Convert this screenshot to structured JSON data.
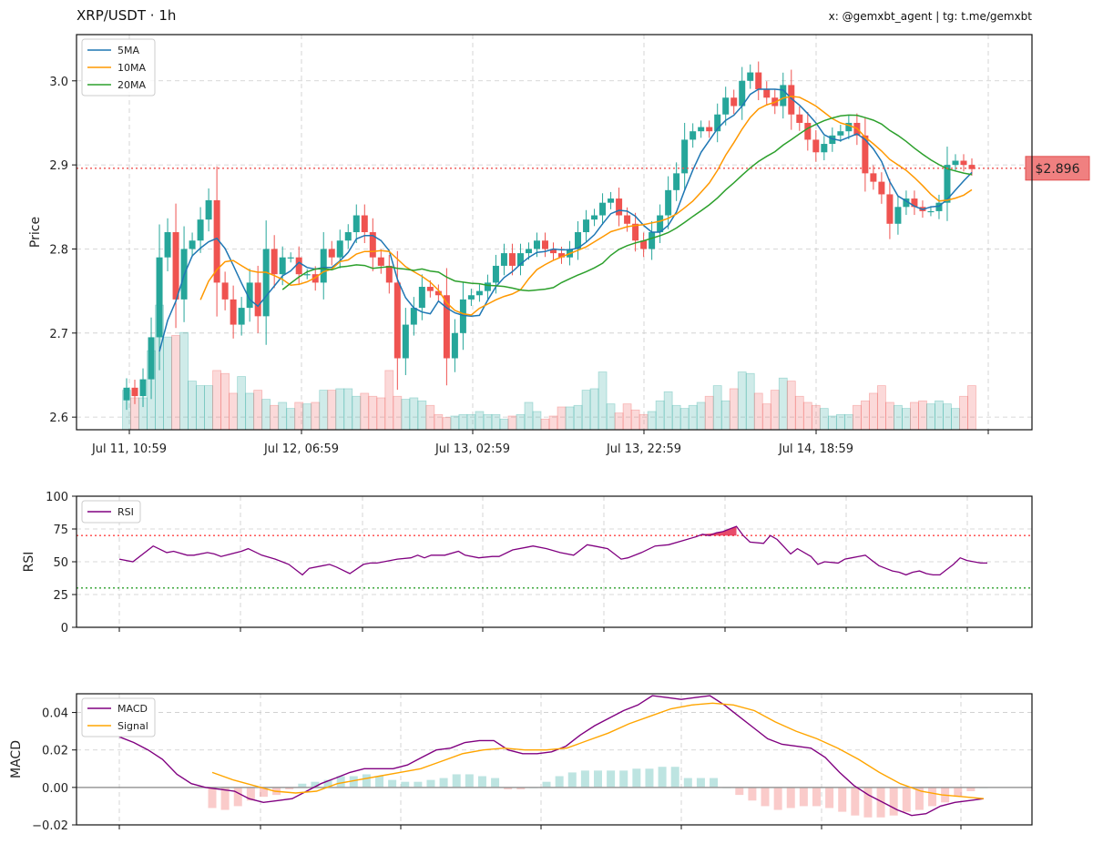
{
  "header": {
    "title": "XRP/USDT · 1h",
    "credit": "x: @gemxbt_agent | tg: t.me/gemxbt"
  },
  "colors": {
    "up": "#26a69a",
    "down": "#ef5350",
    "ma5": "#1f77b4",
    "ma10": "#ff9800",
    "ma20": "#2ca02c",
    "rsi": "#800080",
    "macd": "#800080",
    "signal": "#ffa500",
    "price_line": "#ef5350",
    "overbought": "#ff4444",
    "oversold": "#2ca02c"
  },
  "chart_data": [
    {
      "type": "candlestick",
      "ylabel": "Price",
      "ylim": [
        2.585,
        3.055
      ],
      "yticks": [
        "2.6",
        "2.7",
        "2.8",
        "2.9",
        "3.0"
      ],
      "xticks": [
        "Jul 11, 10:59",
        "Jul 12, 06:59",
        "Jul 13, 02:59",
        "Jul 13, 22:59",
        "Jul 14, 18:59"
      ],
      "grid": true,
      "legend": {
        "position": "top-left",
        "items": [
          "5MA",
          "10MA",
          "20MA"
        ]
      },
      "current_price": 2.896,
      "current_price_label": "$2.896",
      "closes": [
        2.635,
        2.625,
        2.645,
        2.695,
        2.79,
        2.82,
        2.74,
        2.8,
        2.81,
        2.835,
        2.858,
        2.76,
        2.74,
        2.71,
        2.73,
        2.76,
        2.72,
        2.8,
        2.77,
        2.79,
        2.79,
        2.77,
        2.77,
        2.76,
        2.8,
        2.79,
        2.81,
        2.82,
        2.84,
        2.82,
        2.79,
        2.78,
        2.76,
        2.67,
        2.71,
        2.73,
        2.755,
        2.75,
        2.745,
        2.67,
        2.7,
        2.74,
        2.745,
        2.75,
        2.76,
        2.78,
        2.795,
        2.78,
        2.795,
        2.8,
        2.81,
        2.8,
        2.795,
        2.79,
        2.8,
        2.82,
        2.835,
        2.84,
        2.855,
        2.86,
        2.84,
        2.83,
        2.81,
        2.8,
        2.82,
        2.84,
        2.87,
        2.89,
        2.93,
        2.94,
        2.945,
        2.94,
        2.96,
        2.98,
        2.97,
        3.0,
        3.01,
        2.99,
        2.98,
        2.97,
        2.995,
        2.96,
        2.95,
        2.93,
        2.915,
        2.925,
        2.935,
        2.94,
        2.95,
        2.935,
        2.89,
        2.88,
        2.865,
        2.83,
        2.85,
        2.86,
        2.85,
        2.845,
        2.845,
        2.855,
        2.9,
        2.905,
        2.9,
        2.895
      ],
      "volumes": [
        0.026,
        0.021,
        0.021,
        0.052,
        0.082,
        0.061,
        0.062,
        0.064,
        0.032,
        0.029,
        0.029,
        0.039,
        0.037,
        0.024,
        0.035,
        0.024,
        0.026,
        0.02,
        0.016,
        0.018,
        0.014,
        0.018,
        0.017,
        0.018,
        0.026,
        0.026,
        0.027,
        0.027,
        0.022,
        0.024,
        0.022,
        0.021,
        0.039,
        0.022,
        0.02,
        0.021,
        0.019,
        0.016,
        0.01,
        0.008,
        0.009,
        0.01,
        0.01,
        0.012,
        0.01,
        0.01,
        0.007,
        0.009,
        0.01,
        0.018,
        0.012,
        0.007,
        0.009,
        0.015,
        0.015,
        0.016,
        0.026,
        0.027,
        0.038,
        0.017,
        0.011,
        0.017,
        0.013,
        0.01,
        0.012,
        0.019,
        0.025,
        0.016,
        0.014,
        0.016,
        0.018,
        0.022,
        0.029,
        0.019,
        0.027,
        0.038,
        0.037,
        0.024,
        0.017,
        0.026,
        0.034,
        0.032,
        0.022,
        0.018,
        0.016,
        0.014,
        0.009,
        0.01,
        0.01,
        0.016,
        0.019,
        0.024,
        0.029,
        0.018,
        0.016,
        0.014,
        0.018,
        0.019,
        0.017,
        0.019,
        0.017,
        0.014,
        0.022,
        0.029
      ],
      "volume_scale_max": 0.26
    },
    {
      "type": "line",
      "ylabel": "RSI",
      "ylim": [
        0,
        100
      ],
      "yticks": [
        "0",
        "25",
        "50",
        "75",
        "100"
      ],
      "legend": {
        "position": "top-left",
        "items": [
          "RSI"
        ]
      },
      "overbought": 70,
      "oversold": 30,
      "values": [
        52,
        50,
        62,
        57,
        58,
        55,
        55,
        57,
        56,
        54,
        58,
        60,
        55,
        52,
        50,
        48,
        40,
        45,
        47,
        48,
        46,
        41,
        48,
        49,
        49,
        50,
        52,
        53,
        55,
        53,
        55,
        55,
        58,
        55,
        53,
        54,
        54,
        59,
        61,
        62,
        60,
        57,
        55,
        63,
        62,
        60,
        52,
        53,
        57,
        62,
        63,
        66,
        69,
        71,
        70,
        72,
        73,
        75,
        77,
        70,
        65,
        64,
        70,
        67,
        56,
        60,
        54,
        48,
        50,
        49,
        52,
        53,
        54,
        55,
        51,
        47,
        45,
        43,
        42,
        40,
        42,
        43,
        41,
        40,
        40,
        44,
        48,
        53,
        51,
        50,
        49,
        49
      ],
      "x_rsi": [
        0,
        2,
        5,
        7,
        8,
        10,
        11,
        13,
        14,
        15,
        18,
        19,
        21,
        23,
        24,
        25,
        27,
        28,
        30,
        31,
        32,
        34,
        36,
        37,
        38,
        39,
        41,
        43,
        44,
        45,
        46,
        48,
        50,
        51,
        53,
        55,
        56,
        58,
        60,
        61,
        63,
        65,
        67,
        69,
        70,
        72,
        74,
        75,
        77,
        79,
        81,
        83,
        85,
        86,
        87,
        88,
        89,
        90,
        91,
        92,
        93,
        95,
        96,
        97,
        99,
        100,
        102,
        103,
        104,
        106,
        107,
        108,
        109,
        110,
        111,
        112,
        113,
        114,
        115,
        116,
        117,
        118,
        119,
        120,
        121,
        122,
        123,
        124,
        125,
        126,
        127,
        128
      ]
    },
    {
      "type": "line",
      "ylabel": "MACD",
      "ylim": [
        -0.02,
        0.05
      ],
      "yticks": [
        "−0.02",
        "0.00",
        "0.02",
        "0.04"
      ],
      "legend": {
        "position": "top-left",
        "items": [
          "MACD",
          "Signal"
        ]
      },
      "macd": [
        0.027,
        0.024,
        0.02,
        0.015,
        0.007,
        0.002,
        0.0,
        -0.001,
        -0.002,
        -0.006,
        -0.008,
        -0.007,
        -0.006,
        -0.002,
        0.002,
        0.005,
        0.008,
        0.01,
        0.01,
        0.01,
        0.012,
        0.016,
        0.02,
        0.021,
        0.024,
        0.025,
        0.025,
        0.02,
        0.018,
        0.018,
        0.019,
        0.022,
        0.028,
        0.033,
        0.037,
        0.041,
        0.044,
        0.049,
        0.048,
        0.047,
        0.048,
        0.049,
        0.044,
        0.038,
        0.032,
        0.026,
        0.023,
        0.022,
        0.021,
        0.016,
        0.008,
        0.001,
        -0.004,
        -0.008,
        -0.012,
        -0.015,
        -0.014,
        -0.01,
        -0.008,
        -0.007,
        -0.006
      ],
      "signal": [
        0.008,
        0.004,
        0.001,
        -0.002,
        -0.003,
        -0.002,
        0.002,
        0.004,
        0.006,
        0.008,
        0.01,
        0.014,
        0.018,
        0.02,
        0.021,
        0.02,
        0.02,
        0.021,
        0.025,
        0.029,
        0.034,
        0.038,
        0.042,
        0.044,
        0.045,
        0.044,
        0.041,
        0.035,
        0.03,
        0.026,
        0.021,
        0.015,
        0.008,
        0.002,
        -0.002,
        -0.004,
        -0.005,
        -0.006
      ],
      "histogram": [
        -0.011,
        -0.012,
        -0.01,
        -0.007,
        -0.005,
        -0.004,
        -0.001,
        0.002,
        0.003,
        0.004,
        0.006,
        0.006,
        0.007,
        0.006,
        0.004,
        0.003,
        0.003,
        0.004,
        0.005,
        0.007,
        0.007,
        0.006,
        0.005,
        -0.001,
        -0.001,
        0.0,
        0.003,
        0.006,
        0.008,
        0.009,
        0.009,
        0.009,
        0.009,
        0.01,
        0.01,
        0.011,
        0.011,
        0.005,
        0.005,
        0.005,
        0.0,
        -0.004,
        -0.007,
        -0.01,
        -0.012,
        -0.011,
        -0.01,
        -0.01,
        -0.011,
        -0.013,
        -0.015,
        -0.016,
        -0.016,
        -0.015,
        -0.013,
        -0.012,
        -0.01,
        -0.008,
        -0.005,
        -0.002,
        0.0
      ]
    }
  ]
}
